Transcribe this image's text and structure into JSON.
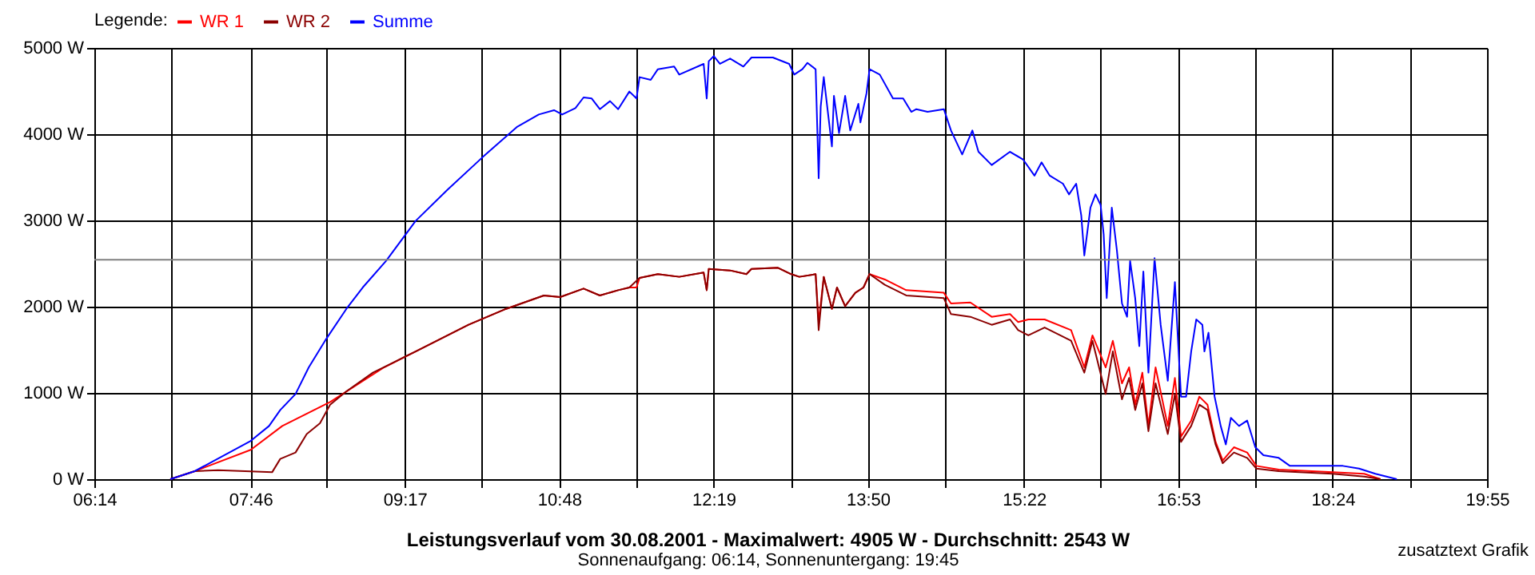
{
  "chart_data": {
    "type": "line",
    "title": "Leistungsverlauf vom 30.08.2001 - Maximalwert: 4905 W - Durchschnitt: 2543 W",
    "subtitle": "Sonnenaufgang: 06:14, Sonnenuntergang: 19:45",
    "legend_title": "Legende:",
    "legend": "top left",
    "grid": true,
    "annotations": [
      "zusatztext Grafik"
    ],
    "xlim": [
      6.2333,
      19.9167
    ],
    "xticks": [
      {
        "value": 6.2333,
        "label": "06:14"
      },
      {
        "value": 6.9935,
        "label": null
      },
      {
        "value": 7.7667,
        "label": "07:46"
      },
      {
        "value": 8.5139,
        "label": null
      },
      {
        "value": 9.2833,
        "label": "09:17"
      },
      {
        "value": 10.0343,
        "label": null
      },
      {
        "value": 10.8,
        "label": "10:48"
      },
      {
        "value": 11.5546,
        "label": null
      },
      {
        "value": 12.3167,
        "label": "12:19"
      },
      {
        "value": 13.075,
        "label": null
      },
      {
        "value": 13.8333,
        "label": "13:50"
      },
      {
        "value": 14.5954,
        "label": null
      },
      {
        "value": 15.3667,
        "label": "15:22"
      },
      {
        "value": 16.1157,
        "label": null
      },
      {
        "value": 16.8833,
        "label": "16:53"
      },
      {
        "value": 17.6361,
        "label": null
      },
      {
        "value": 18.4,
        "label": "18:24"
      },
      {
        "value": 19.1565,
        "label": null
      },
      {
        "value": 19.9167,
        "label": "19:55"
      }
    ],
    "ylim": [
      0,
      5000
    ],
    "yticks": [
      {
        "value": 0,
        "label": "0 W"
      },
      {
        "value": 1000,
        "label": "1000 W"
      },
      {
        "value": 2000,
        "label": "2000 W"
      },
      {
        "value": 3000,
        "label": "3000 W"
      },
      {
        "value": 4000,
        "label": "4000 W"
      },
      {
        "value": 5000,
        "label": "5000 W"
      }
    ],
    "ref_lines": [
      {
        "axis": "y",
        "value": 2543,
        "color": "#808080"
      }
    ],
    "series": [
      {
        "name": "WR 1",
        "color": "#ff0000",
        "x": [
          6.98,
          7.22,
          7.77,
          8.08,
          8.55,
          9.08,
          9.39,
          9.91,
          10.28,
          10.65,
          10.81,
          11.04,
          11.2,
          11.38,
          11.49,
          11.56,
          11.59,
          11.77,
          11.98,
          12.22,
          12.25,
          12.27,
          12.48,
          12.64,
          12.69,
          12.95,
          13.08,
          13.16,
          13.32,
          13.35,
          13.4,
          13.48,
          13.53,
          13.61,
          13.71,
          13.79,
          13.85,
          14.0,
          14.21,
          14.58,
          14.65,
          14.84,
          15.05,
          15.23,
          15.31,
          15.41,
          15.57,
          15.83,
          15.96,
          16.04,
          16.17,
          16.24,
          16.33,
          16.4,
          16.46,
          16.53,
          16.59,
          16.66,
          16.78,
          16.85,
          16.91,
          17.01,
          17.09,
          17.17,
          17.25,
          17.32,
          17.43,
          17.56,
          17.65,
          17.87,
          18.4,
          18.71,
          18.87
        ],
        "values": [
          0,
          93,
          340,
          617,
          895,
          1296,
          1481,
          1790,
          1975,
          2130,
          2111,
          2210,
          2130,
          2191,
          2222,
          2222,
          2333,
          2377,
          2346,
          2395,
          2191,
          2438,
          2420,
          2377,
          2438,
          2451,
          2377,
          2346,
          2377,
          1821,
          2346,
          1975,
          2222,
          2006,
          2161,
          2222,
          2377,
          2315,
          2191,
          2161,
          2037,
          2049,
          1883,
          1914,
          1821,
          1852,
          1852,
          1728,
          1296,
          1667,
          1296,
          1605,
          1111,
          1296,
          864,
          1235,
          617,
          1296,
          617,
          1173,
          494,
          679,
          957,
          864,
          432,
          216,
          370,
          309,
          154,
          111,
          80,
          62,
          0
        ]
      },
      {
        "name": "WR 2",
        "color": "#8b0000",
        "x": [
          6.98,
          7.22,
          7.45,
          7.98,
          8.06,
          8.21,
          8.32,
          8.45,
          8.55,
          8.71,
          8.97,
          9.18,
          9.39,
          9.91,
          10.28,
          10.65,
          10.81,
          11.04,
          11.2,
          11.38,
          11.49,
          11.59,
          11.77,
          11.98,
          12.22,
          12.25,
          12.27,
          12.48,
          12.64,
          12.69,
          12.95,
          13.08,
          13.16,
          13.32,
          13.35,
          13.4,
          13.48,
          13.53,
          13.61,
          13.71,
          13.79,
          13.85,
          14.0,
          14.21,
          14.58,
          14.65,
          14.84,
          15.05,
          15.23,
          15.31,
          15.41,
          15.57,
          15.83,
          15.96,
          16.04,
          16.17,
          16.24,
          16.33,
          16.4,
          16.46,
          16.53,
          16.59,
          16.66,
          16.78,
          16.85,
          16.91,
          17.01,
          17.09,
          17.17,
          17.25,
          17.32,
          17.43,
          17.56,
          17.65,
          17.87,
          18.4,
          18.71,
          18.87
        ],
        "values": [
          0,
          93,
          105,
          80,
          235,
          309,
          524,
          648,
          864,
          1019,
          1235,
          1358,
          1481,
          1790,
          1975,
          2130,
          2111,
          2210,
          2130,
          2191,
          2222,
          2333,
          2377,
          2346,
          2395,
          2191,
          2438,
          2420,
          2377,
          2438,
          2451,
          2377,
          2346,
          2377,
          1728,
          2346,
          1975,
          2222,
          2006,
          2161,
          2222,
          2377,
          2253,
          2130,
          2099,
          1914,
          1883,
          1790,
          1852,
          1728,
          1667,
          1759,
          1605,
          1235,
          1605,
          987,
          1481,
          926,
          1173,
          802,
          1111,
          556,
          1111,
          524,
          987,
          432,
          617,
          864,
          802,
          401,
          185,
          309,
          247,
          123,
          93,
          62,
          31,
          0
        ]
      },
      {
        "name": "Summe",
        "color": "#0000ff",
        "x": [
          6.98,
          7.22,
          7.77,
          7.95,
          8.06,
          8.21,
          8.34,
          8.5,
          8.71,
          8.87,
          9.1,
          9.39,
          9.71,
          10.05,
          10.39,
          10.6,
          10.75,
          10.83,
          10.96,
          11.04,
          11.12,
          11.2,
          11.3,
          11.38,
          11.49,
          11.56,
          11.59,
          11.7,
          11.77,
          11.93,
          11.98,
          12.22,
          12.25,
          12.27,
          12.32,
          12.38,
          12.48,
          12.61,
          12.69,
          12.9,
          13.06,
          13.11,
          13.19,
          13.24,
          13.32,
          13.35,
          13.37,
          13.4,
          13.48,
          13.5,
          13.55,
          13.61,
          13.66,
          13.74,
          13.76,
          13.82,
          13.85,
          13.95,
          14.08,
          14.18,
          14.26,
          14.31,
          14.42,
          14.58,
          14.65,
          14.76,
          14.86,
          14.92,
          15.05,
          15.23,
          15.36,
          15.47,
          15.54,
          15.62,
          15.75,
          15.81,
          15.88,
          15.93,
          15.96,
          16.02,
          16.07,
          16.12,
          16.15,
          16.18,
          16.23,
          16.28,
          16.33,
          16.38,
          16.41,
          16.46,
          16.5,
          16.54,
          16.59,
          16.65,
          16.71,
          16.78,
          16.85,
          16.91,
          16.96,
          17.01,
          17.06,
          17.12,
          17.14,
          17.18,
          17.24,
          17.3,
          17.35,
          17.4,
          17.48,
          17.56,
          17.64,
          17.72,
          17.87,
          17.98,
          18.5,
          18.66,
          18.82,
          19.03
        ],
        "values": [
          0,
          93,
          444,
          617,
          802,
          987,
          1296,
          1605,
          1975,
          2222,
          2531,
          2994,
          3364,
          3735,
          4087,
          4228,
          4278,
          4228,
          4303,
          4426,
          4414,
          4290,
          4383,
          4290,
          4494,
          4414,
          4661,
          4630,
          4753,
          4784,
          4691,
          4815,
          4414,
          4846,
          4905,
          4815,
          4877,
          4784,
          4889,
          4889,
          4815,
          4691,
          4753,
          4827,
          4753,
          3488,
          4321,
          4661,
          3858,
          4444,
          4012,
          4444,
          4043,
          4352,
          4136,
          4475,
          4753,
          4691,
          4414,
          4414,
          4259,
          4290,
          4259,
          4290,
          4043,
          3765,
          4043,
          3796,
          3642,
          3796,
          3704,
          3519,
          3673,
          3519,
          3426,
          3302,
          3426,
          3056,
          2593,
          3148,
          3302,
          3179,
          2839,
          2099,
          3148,
          2654,
          2037,
          1883,
          2531,
          2099,
          1543,
          2407,
          1235,
          2562,
          1790,
          1142,
          2284,
          957,
          957,
          1481,
          1852,
          1790,
          1481,
          1698,
          957,
          617,
          402,
          710,
          617,
          679,
          370,
          278,
          247,
          154,
          154,
          123,
          62,
          0
        ]
      }
    ]
  }
}
